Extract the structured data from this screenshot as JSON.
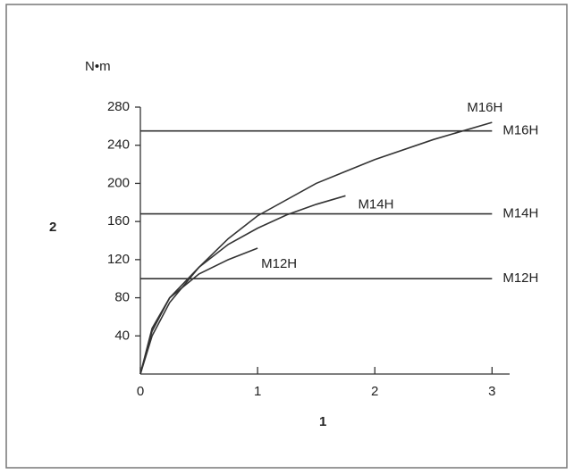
{
  "chart_data": {
    "type": "line",
    "y_unit": "N•m",
    "y_label": "2",
    "x_label": "1",
    "xlim": [
      0,
      3.15
    ],
    "xticks": [
      0,
      1,
      2,
      3
    ],
    "ylim": [
      0,
      280
    ],
    "yticks": [
      40,
      80,
      120,
      160,
      200,
      240,
      280
    ],
    "color": "#333333",
    "series": [
      {
        "name": "M16H",
        "x": [
          0,
          0.1,
          0.25,
          0.5,
          0.75,
          1,
          1.5,
          2,
          2.5,
          3
        ],
        "values": [
          0,
          40,
          75,
          112,
          142,
          166,
          200,
          225,
          246,
          264
        ]
      },
      {
        "name": "M14H",
        "x": [
          0,
          0.1,
          0.25,
          0.5,
          0.75,
          1,
          1.25,
          1.5,
          1.75
        ],
        "values": [
          0,
          45,
          80,
          112,
          136,
          153,
          167,
          178,
          187
        ]
      },
      {
        "name": "M12H",
        "x": [
          0,
          0.1,
          0.25,
          0.5,
          0.75,
          1
        ],
        "values": [
          0,
          48,
          80,
          105,
          120,
          132
        ]
      },
      {
        "name": "M16H",
        "x": [
          0,
          3
        ],
        "values": [
          255,
          255
        ]
      },
      {
        "name": "M14H",
        "x": [
          0,
          3
        ],
        "values": [
          168,
          168
        ]
      },
      {
        "name": "M12H",
        "x": [
          0,
          3
        ],
        "values": [
          100,
          100
        ]
      }
    ]
  }
}
